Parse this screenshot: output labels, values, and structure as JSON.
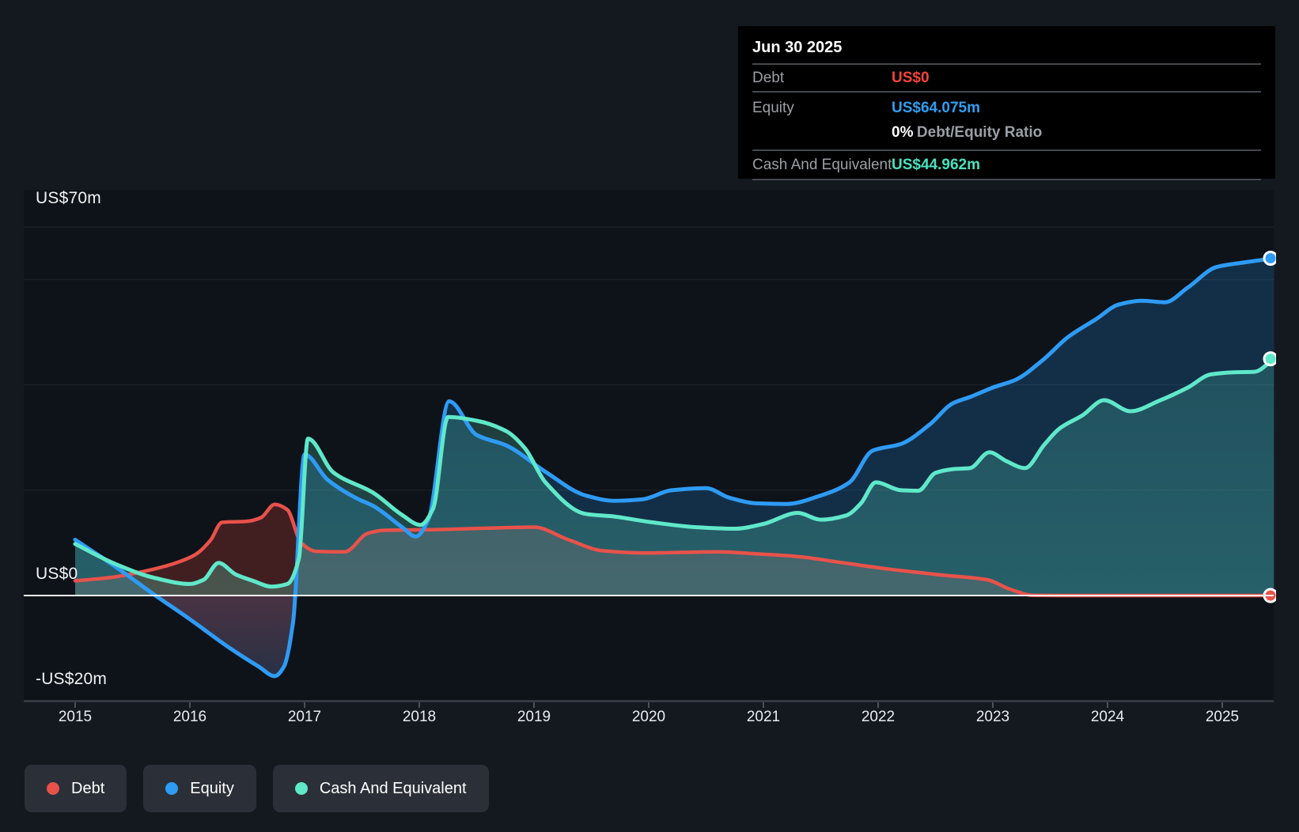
{
  "tooltip": {
    "date": "Jun 30 2025",
    "debt_label": "Debt",
    "debt_value": "US$0",
    "equity_label": "Equity",
    "equity_value": "US$64.075m",
    "ratio_value": "0%",
    "ratio_label": "Debt/Equity Ratio",
    "cash_label": "Cash And Equivalent",
    "cash_value": "US$44.962m"
  },
  "y_axis": {
    "top": "US$70m",
    "zero": "US$0",
    "bottom": "-US$20m"
  },
  "x_axis": {
    "years": [
      "2015",
      "2016",
      "2017",
      "2018",
      "2019",
      "2020",
      "2021",
      "2022",
      "2023",
      "2024",
      "2025"
    ]
  },
  "legend": {
    "debt": "Debt",
    "equity": "Equity",
    "cash": "Cash And Equivalent"
  },
  "colors": {
    "debt": "#e8524a",
    "equity": "#2e9bf5",
    "cash": "#5fe8c9",
    "debt_value": "#f5433c",
    "equity_value": "#2f9ff1",
    "cash_value": "#49e2bf",
    "debt_fill": "rgba(230,70,58,0.24)",
    "equity_fill": "rgba(40,150,235,0.22)",
    "equity_neg_top": "rgba(215,62,55,0.28)",
    "equity_neg_bottom": "rgba(215,62,55,0.06)",
    "cash_fill_top": "rgba(94,232,200,0.18)",
    "cash_fill_bottom": "rgba(94,232,200,0.30)",
    "grid": "rgba(255,255,255,0.08)",
    "zero_line": "#f5f6f7",
    "axis_line": "#3a4049",
    "tick": "#4b515a"
  },
  "chart_data": {
    "type": "area",
    "x_unit": "year (decimal)",
    "y_unit": "US$ millions",
    "xlim": [
      2015,
      2025.45
    ],
    "ylim": [
      -20,
      70
    ],
    "grid_on": true,
    "gridline_values": [
      70,
      60,
      40,
      20
    ],
    "zero_value": 0,
    "bottom_value": -20,
    "legend_position": "bottom-left",
    "final_values": {
      "debt": 0,
      "equity": 64.075,
      "cash": 44.962
    },
    "final_date": "Jun 30 2025",
    "series": [
      {
        "name": "Debt",
        "points": [
          [
            2015.0,
            2.8
          ],
          [
            2015.3,
            3.4
          ],
          [
            2015.6,
            4.6
          ],
          [
            2015.85,
            6.0
          ],
          [
            2016.05,
            7.8
          ],
          [
            2016.18,
            10.5
          ],
          [
            2016.28,
            13.9
          ],
          [
            2016.5,
            14.1
          ],
          [
            2016.62,
            14.8
          ],
          [
            2016.74,
            17.3
          ],
          [
            2016.85,
            16.3
          ],
          [
            2016.97,
            10.0
          ],
          [
            2017.1,
            8.4
          ],
          [
            2017.35,
            8.3
          ],
          [
            2017.55,
            11.8
          ],
          [
            2017.7,
            12.4
          ],
          [
            2018.1,
            12.5
          ],
          [
            2018.6,
            12.8
          ],
          [
            2019.0,
            13.0
          ],
          [
            2019.3,
            10.6
          ],
          [
            2019.6,
            8.5
          ],
          [
            2019.95,
            8.1
          ],
          [
            2020.3,
            8.2
          ],
          [
            2020.6,
            8.3
          ],
          [
            2020.95,
            7.9
          ],
          [
            2021.3,
            7.4
          ],
          [
            2021.7,
            6.2
          ],
          [
            2022.1,
            5.0
          ],
          [
            2022.55,
            3.9
          ],
          [
            2022.95,
            3.0
          ],
          [
            2023.15,
            1.2
          ],
          [
            2023.35,
            0.05
          ],
          [
            2023.6,
            0
          ],
          [
            2024.2,
            0
          ],
          [
            2024.8,
            0
          ],
          [
            2025.45,
            0
          ]
        ]
      },
      {
        "name": "Equity",
        "points": [
          [
            2015.0,
            10.6
          ],
          [
            2015.35,
            5.5
          ],
          [
            2015.7,
            0.0
          ],
          [
            2016.0,
            -4.5
          ],
          [
            2016.35,
            -10.0
          ],
          [
            2016.6,
            -13.5
          ],
          [
            2016.74,
            -15.3
          ],
          [
            2016.82,
            -13.5
          ],
          [
            2016.9,
            -5.0
          ],
          [
            2017.0,
            26.8
          ],
          [
            2017.2,
            22.0
          ],
          [
            2017.45,
            18.5
          ],
          [
            2017.6,
            17.0
          ],
          [
            2017.85,
            13.0
          ],
          [
            2017.97,
            11.2
          ],
          [
            2018.08,
            14.5
          ],
          [
            2018.26,
            36.9
          ],
          [
            2018.5,
            30.5
          ],
          [
            2018.76,
            28.5
          ],
          [
            2019.1,
            23.5
          ],
          [
            2019.45,
            19.0
          ],
          [
            2019.7,
            18.0
          ],
          [
            2019.95,
            18.3
          ],
          [
            2020.2,
            20.0
          ],
          [
            2020.5,
            20.4
          ],
          [
            2020.7,
            18.6
          ],
          [
            2020.95,
            17.5
          ],
          [
            2021.2,
            17.4
          ],
          [
            2021.5,
            19.0
          ],
          [
            2021.75,
            21.5
          ],
          [
            2021.95,
            27.5
          ],
          [
            2022.2,
            28.8
          ],
          [
            2022.45,
            32.5
          ],
          [
            2022.65,
            36.5
          ],
          [
            2022.8,
            37.7
          ],
          [
            2023.0,
            39.5
          ],
          [
            2023.2,
            41.0
          ],
          [
            2023.45,
            45.0
          ],
          [
            2023.65,
            49.0
          ],
          [
            2023.9,
            52.5
          ],
          [
            2024.1,
            55.3
          ],
          [
            2024.3,
            56.0
          ],
          [
            2024.5,
            55.7
          ],
          [
            2024.7,
            58.5
          ],
          [
            2024.95,
            62.4
          ],
          [
            2025.2,
            63.3
          ],
          [
            2025.45,
            64.075
          ]
        ]
      },
      {
        "name": "Cash And Equivalent",
        "points": [
          [
            2015.0,
            9.8
          ],
          [
            2015.35,
            6.0
          ],
          [
            2015.7,
            3.3
          ],
          [
            2016.0,
            2.2
          ],
          [
            2016.12,
            3.0
          ],
          [
            2016.25,
            6.2
          ],
          [
            2016.4,
            4.0
          ],
          [
            2016.55,
            2.8
          ],
          [
            2016.71,
            1.7
          ],
          [
            2016.85,
            2.2
          ],
          [
            2016.95,
            7.0
          ],
          [
            2017.03,
            29.8
          ],
          [
            2017.25,
            23.4
          ],
          [
            2017.6,
            19.5
          ],
          [
            2017.85,
            15.3
          ],
          [
            2018.01,
            13.4
          ],
          [
            2018.12,
            16.5
          ],
          [
            2018.25,
            33.9
          ],
          [
            2018.5,
            33.2
          ],
          [
            2018.76,
            31.2
          ],
          [
            2018.92,
            28.0
          ],
          [
            2019.1,
            21.5
          ],
          [
            2019.45,
            15.5
          ],
          [
            2019.7,
            15.0
          ],
          [
            2020.0,
            14.0
          ],
          [
            2020.4,
            13.0
          ],
          [
            2020.75,
            12.7
          ],
          [
            2021.0,
            13.6
          ],
          [
            2021.3,
            15.7
          ],
          [
            2021.5,
            14.4
          ],
          [
            2021.72,
            15.2
          ],
          [
            2021.85,
            17.5
          ],
          [
            2021.98,
            21.5
          ],
          [
            2022.2,
            20.0
          ],
          [
            2022.35,
            19.9
          ],
          [
            2022.5,
            23.3
          ],
          [
            2022.65,
            24.0
          ],
          [
            2022.8,
            24.2
          ],
          [
            2022.97,
            27.2
          ],
          [
            2023.12,
            25.5
          ],
          [
            2023.28,
            24.2
          ],
          [
            2023.45,
            28.7
          ],
          [
            2023.58,
            31.7
          ],
          [
            2023.78,
            34.2
          ],
          [
            2023.97,
            37.1
          ],
          [
            2024.2,
            35.0
          ],
          [
            2024.45,
            37.0
          ],
          [
            2024.7,
            39.5
          ],
          [
            2024.9,
            42.0
          ],
          [
            2025.1,
            42.4
          ],
          [
            2025.28,
            42.5
          ],
          [
            2025.45,
            44.962
          ]
        ]
      }
    ]
  }
}
